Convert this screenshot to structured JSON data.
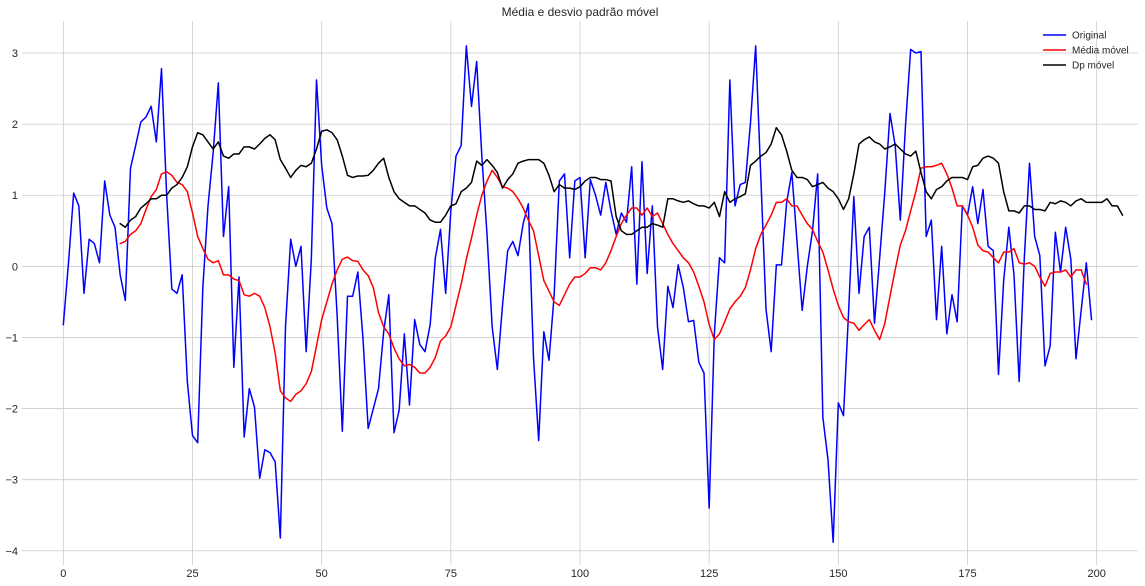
{
  "chart_data": {
    "type": "line",
    "title": "Média e desvio padrão móvel",
    "xlabel": "",
    "ylabel": "",
    "xlim": [
      -8,
      208
    ],
    "ylim": [
      -4.2,
      3.45
    ],
    "xticks": [
      0,
      25,
      50,
      75,
      100,
      125,
      150,
      175,
      200
    ],
    "yticks": [
      3,
      2,
      1,
      0,
      -1,
      -2,
      -3,
      -4
    ],
    "ytick_labels": [
      "3",
      "2",
      "1",
      "0",
      "−1",
      "−2",
      "−3",
      "−4"
    ],
    "grid": true,
    "legend_position": "top-right",
    "series": [
      {
        "name": "Original",
        "color": "#0000ff",
        "x_start": 0,
        "values": [
          -0.82,
          0.05,
          1.03,
          0.85,
          -0.38,
          0.38,
          0.32,
          0.05,
          1.2,
          0.72,
          0.55,
          -0.12,
          -0.48,
          1.38,
          1.7,
          2.03,
          2.1,
          2.25,
          1.75,
          2.78,
          1.0,
          -0.32,
          -0.38,
          -0.12,
          -1.62,
          -2.38,
          -2.48,
          -0.3,
          0.85,
          1.6,
          2.58,
          0.42,
          1.12,
          -1.42,
          -0.15,
          -2.4,
          -1.72,
          -1.98,
          -2.98,
          -2.58,
          -2.62,
          -2.75,
          -3.82,
          -0.85,
          0.38,
          0.0,
          0.28,
          -1.2,
          0.1,
          2.62,
          1.42,
          0.82,
          0.6,
          -0.7,
          -2.32,
          -0.42,
          -0.42,
          -0.08,
          -1.02,
          -2.28,
          -2.0,
          -1.72,
          -0.92,
          -0.4,
          -2.34,
          -2.02,
          -0.95,
          -1.95,
          -0.75,
          -1.1,
          -1.2,
          -0.82,
          0.12,
          0.52,
          -0.38,
          0.78,
          1.55,
          1.7,
          3.1,
          2.25,
          2.88,
          1.55,
          0.45,
          -0.85,
          -1.45,
          -0.55,
          0.22,
          0.35,
          0.15,
          0.6,
          0.88,
          -1.28,
          -2.45,
          -0.92,
          -1.32,
          -0.4,
          1.2,
          1.3,
          0.12,
          1.2,
          1.25,
          0.12,
          1.22,
          1.0,
          0.72,
          1.18,
          0.78,
          0.45,
          0.75,
          0.62,
          1.4,
          -0.25,
          1.47,
          -0.1,
          0.85,
          -0.85,
          -1.45,
          -0.28,
          -0.58,
          0.02,
          -0.3,
          -0.78,
          -0.76,
          -1.35,
          -1.5,
          -3.4,
          -0.95,
          0.12,
          0.05,
          2.62,
          0.85,
          1.15,
          1.18,
          2.02,
          3.1,
          1.25,
          -0.6,
          -1.2,
          0.02,
          0.02,
          0.9,
          1.32,
          0.35,
          -0.62,
          0.0,
          0.5,
          1.3,
          -2.12,
          -2.72,
          -3.88,
          -1.92,
          -2.1,
          -0.62,
          0.98,
          -0.38,
          0.42,
          0.55,
          -0.8,
          0.12,
          1.05,
          2.15,
          1.7,
          0.65,
          1.98,
          3.05,
          3.0,
          3.02,
          0.42,
          0.65,
          -0.75,
          0.28,
          -0.95,
          -0.4,
          -0.78,
          0.85,
          0.72,
          1.12,
          0.6,
          1.08,
          0.28,
          0.22,
          -1.52,
          -0.2,
          0.55,
          -0.12,
          -1.62,
          0.12,
          1.45,
          0.42,
          0.15,
          -1.4,
          -1.12,
          0.48,
          -0.08,
          0.55,
          0.1,
          -1.3,
          -0.62,
          0.05,
          -0.75
        ]
      },
      {
        "name": "Média móvel",
        "color": "#ff0000",
        "x_start": 11,
        "values": [
          0.32,
          0.35,
          0.45,
          0.5,
          0.6,
          0.8,
          0.98,
          1.08,
          1.3,
          1.33,
          1.28,
          1.18,
          1.15,
          1.05,
          0.75,
          0.42,
          0.25,
          0.1,
          0.05,
          0.08,
          -0.12,
          -0.12,
          -0.18,
          -0.2,
          -0.4,
          -0.42,
          -0.38,
          -0.42,
          -0.58,
          -0.85,
          -1.22,
          -1.75,
          -1.85,
          -1.9,
          -1.8,
          -1.75,
          -1.65,
          -1.48,
          -1.12,
          -0.75,
          -0.5,
          -0.25,
          -0.05,
          0.1,
          0.13,
          0.08,
          0.07,
          -0.05,
          -0.13,
          -0.3,
          -0.65,
          -0.85,
          -0.95,
          -1.15,
          -1.3,
          -1.4,
          -1.38,
          -1.42,
          -1.5,
          -1.5,
          -1.42,
          -1.28,
          -1.05,
          -0.98,
          -0.85,
          -0.55,
          -0.25,
          0.1,
          0.4,
          0.72,
          1.0,
          1.2,
          1.35,
          1.25,
          1.12,
          1.1,
          1.05,
          0.95,
          0.82,
          0.65,
          0.5,
          0.15,
          -0.2,
          -0.35,
          -0.5,
          -0.55,
          -0.4,
          -0.25,
          -0.15,
          -0.15,
          -0.1,
          -0.02,
          -0.02,
          -0.05,
          0.05,
          0.22,
          0.42,
          0.6,
          0.72,
          0.82,
          0.82,
          0.72,
          0.82,
          0.7,
          0.75,
          0.6,
          0.45,
          0.32,
          0.22,
          0.12,
          0.05,
          -0.08,
          -0.28,
          -0.5,
          -0.82,
          -1.03,
          -0.95,
          -0.78,
          -0.6,
          -0.5,
          -0.42,
          -0.3,
          -0.05,
          0.25,
          0.45,
          0.58,
          0.72,
          0.9,
          0.9,
          0.95,
          0.85,
          0.85,
          0.72,
          0.6,
          0.52,
          0.35,
          0.2,
          -0.05,
          -0.32,
          -0.55,
          -0.72,
          -0.78,
          -0.8,
          -0.9,
          -0.82,
          -0.75,
          -0.9,
          -1.03,
          -0.8,
          -0.42,
          -0.05,
          0.3,
          0.5,
          0.78,
          1.05,
          1.38,
          1.4,
          1.4,
          1.42,
          1.45,
          1.3,
          1.1,
          0.85,
          0.85,
          0.72,
          0.55,
          0.3,
          0.22,
          0.2,
          0.12,
          0.05,
          0.2,
          0.2,
          0.25,
          0.05,
          0.03,
          0.05,
          0.0,
          -0.15,
          -0.28,
          -0.1,
          -0.08,
          -0.08,
          -0.05,
          -0.15,
          -0.05,
          -0.05,
          -0.25
        ]
      },
      {
        "name": "Dp móvel",
        "color": "#000000",
        "x_start": 11,
        "values": [
          0.6,
          0.55,
          0.65,
          0.7,
          0.82,
          0.88,
          0.95,
          0.95,
          1.0,
          1.0,
          1.1,
          1.15,
          1.25,
          1.4,
          1.68,
          1.88,
          1.85,
          1.75,
          1.65,
          1.75,
          1.55,
          1.52,
          1.58,
          1.58,
          1.68,
          1.68,
          1.65,
          1.72,
          1.8,
          1.85,
          1.78,
          1.5,
          1.38,
          1.25,
          1.35,
          1.42,
          1.4,
          1.45,
          1.65,
          1.9,
          1.92,
          1.88,
          1.78,
          1.55,
          1.28,
          1.25,
          1.27,
          1.27,
          1.28,
          1.35,
          1.45,
          1.52,
          1.25,
          1.05,
          0.95,
          0.9,
          0.85,
          0.85,
          0.8,
          0.75,
          0.65,
          0.62,
          0.62,
          0.72,
          0.85,
          0.88,
          1.05,
          1.1,
          1.18,
          1.48,
          1.42,
          1.5,
          1.42,
          1.32,
          1.1,
          1.22,
          1.3,
          1.45,
          1.48,
          1.5,
          1.5,
          1.5,
          1.45,
          1.28,
          1.05,
          1.15,
          1.1,
          1.1,
          1.08,
          1.12,
          1.2,
          1.25,
          1.25,
          1.22,
          1.22,
          1.2,
          0.7,
          0.5,
          0.45,
          0.45,
          0.5,
          0.55,
          0.55,
          0.6,
          0.58,
          0.55,
          0.95,
          0.95,
          0.92,
          0.9,
          0.92,
          0.88,
          0.85,
          0.85,
          0.82,
          0.9,
          0.7,
          1.05,
          0.9,
          0.95,
          0.98,
          1.02,
          1.42,
          1.48,
          1.55,
          1.6,
          1.72,
          1.95,
          1.85,
          1.62,
          1.35,
          1.25,
          1.25,
          1.22,
          1.12,
          1.15,
          1.18,
          1.1,
          1.05,
          0.95,
          0.8,
          0.95,
          1.3,
          1.72,
          1.78,
          1.82,
          1.75,
          1.72,
          1.65,
          1.68,
          1.72,
          1.65,
          1.58,
          1.55,
          1.62,
          1.32,
          1.05,
          0.95,
          1.08,
          1.12,
          1.2,
          1.25,
          1.25,
          1.25,
          1.22,
          1.4,
          1.42,
          1.52,
          1.55,
          1.52,
          1.45,
          1.05,
          0.78,
          0.78,
          0.75,
          0.85,
          0.85,
          0.8,
          0.8,
          0.78,
          0.9,
          0.88,
          0.92,
          0.9,
          0.85,
          0.92,
          0.95,
          0.9,
          0.9,
          0.9,
          0.9,
          0.95,
          0.85,
          0.85,
          0.72
        ]
      }
    ]
  }
}
